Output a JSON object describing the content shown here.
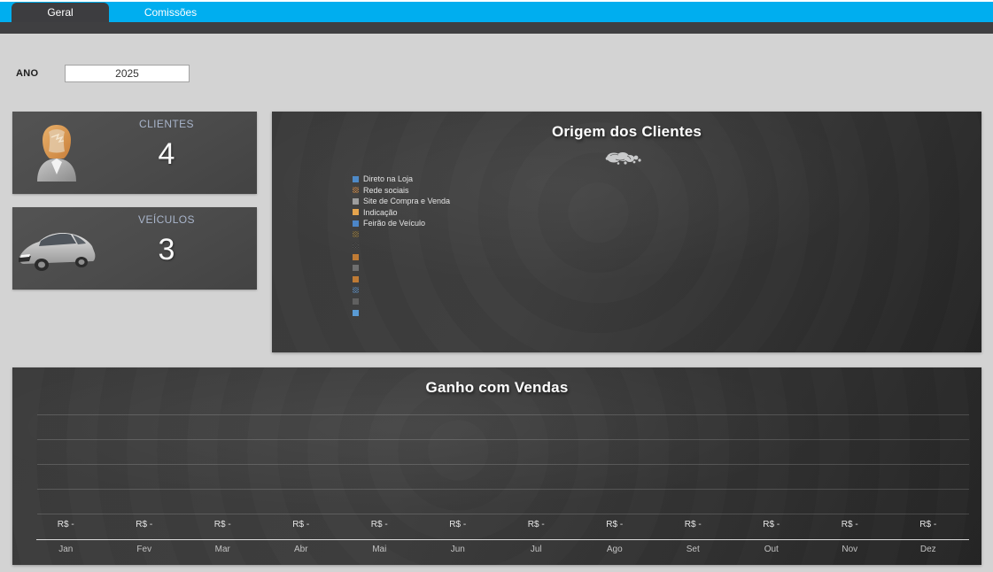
{
  "tabs": [
    {
      "label": "Geral",
      "active": true
    },
    {
      "label": "Comissões",
      "active": false
    }
  ],
  "filters": {
    "year_label": "ANO",
    "year_value": "2025"
  },
  "kpis": [
    {
      "label": "CLIENTES",
      "value": "4",
      "icon": "person-icon"
    },
    {
      "label": "VEÍCULOS",
      "value": "3",
      "icon": "car-icon"
    }
  ],
  "colors": {
    "accent_blue": "#00AEEF",
    "tab_dark": "#3D3D40",
    "body_bg": "#D3D3D3",
    "card_bg": "#4B4B4B",
    "kpi_label": "#A9B5CB",
    "panel_dark": "#353535"
  },
  "chart_data": [
    {
      "type": "pie",
      "title": "Origem dos Clientes",
      "categories": [
        "Direto na Loja",
        "Rede sociais",
        "Site de Compra e Venda",
        "Indicação",
        "Feirão de Veículo",
        "",
        "",
        "",
        "",
        "",
        "",
        "",
        ""
      ],
      "values": [
        0,
        0,
        0,
        0,
        0,
        0,
        0,
        0,
        0,
        0,
        0,
        0,
        0
      ],
      "legend_position": "left",
      "annotation": "overlapping 0% data labels at collapsed pie center",
      "legend": [
        {
          "label": "Direto na Loja",
          "color": "#4E8AC8",
          "pattern": false
        },
        {
          "label": "Rede sociais",
          "color": "#D0955C",
          "pattern": true
        },
        {
          "label": "Site de Compra e Venda",
          "color": "#9D9D9D",
          "pattern": false
        },
        {
          "label": "Indicação",
          "color": "#E5A44D",
          "pattern": false
        },
        {
          "label": "Feirão de Veículo",
          "color": "#4C86C8",
          "pattern": false
        },
        {
          "label": "",
          "color": "#97804F",
          "pattern": true
        },
        {
          "label": "",
          "color": "#585858",
          "pattern": true
        },
        {
          "label": "",
          "color": "#BF7B35",
          "pattern": false
        },
        {
          "label": "",
          "color": "#6F6F6F",
          "pattern": false
        },
        {
          "label": "",
          "color": "#BF7B35",
          "pattern": false
        },
        {
          "label": "",
          "color": "#6B93BC",
          "pattern": true
        },
        {
          "label": "",
          "color": "#606060",
          "pattern": false
        },
        {
          "label": "",
          "color": "#599AD3",
          "pattern": false
        }
      ]
    },
    {
      "type": "bar",
      "title": "Ganho com Vendas",
      "categories": [
        "Jan",
        "Fev",
        "Mar",
        "Abr",
        "Mai",
        "Jun",
        "Jul",
        "Ago",
        "Set",
        "Out",
        "Nov",
        "Dez"
      ],
      "values": [
        0,
        0,
        0,
        0,
        0,
        0,
        0,
        0,
        0,
        0,
        0,
        0
      ],
      "data_labels": [
        "R$ -",
        "R$ -",
        "R$ -",
        "R$ -",
        "R$ -",
        "R$ -",
        "R$ -",
        "R$ -",
        "R$ -",
        "R$ -",
        "R$ -",
        "R$ -"
      ],
      "xlabel": "",
      "ylabel": "",
      "ylim": [
        0,
        1
      ],
      "grid": true,
      "legend_position": "none"
    }
  ]
}
